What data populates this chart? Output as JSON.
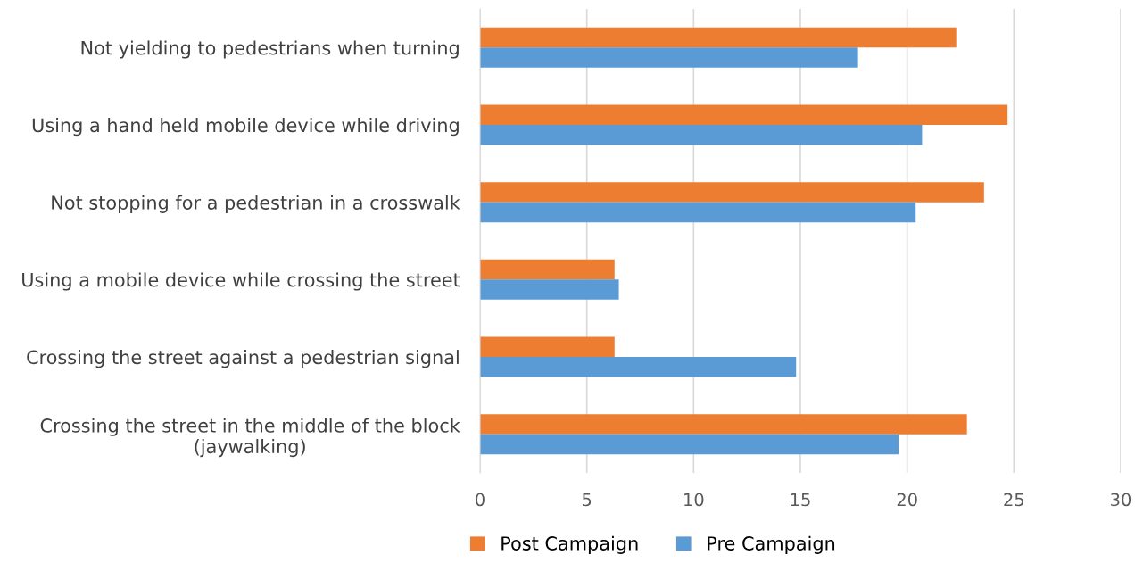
{
  "chart_data": {
    "type": "bar",
    "orientation": "horizontal",
    "categories": [
      "Not yielding to pedestrians when turning",
      "Using a hand held mobile device while driving",
      "Not stopping for a pedestrian in a crosswalk",
      "Using a mobile device while crossing the street",
      "Crossing the street against a pedestrian signal",
      "Crossing the street in the middle of the block\n(jaywalking)"
    ],
    "series": [
      {
        "name": "Post Campaign",
        "color": "#ed7d31",
        "values": [
          22.3,
          24.7,
          23.6,
          6.3,
          6.3,
          22.8
        ]
      },
      {
        "name": "Pre Campaign",
        "color": "#5b9bd5",
        "values": [
          17.7,
          20.7,
          20.4,
          6.5,
          14.8,
          19.6
        ]
      }
    ],
    "xlim": [
      0,
      30
    ],
    "xticks": [
      0,
      5,
      10,
      15,
      20,
      25,
      30
    ],
    "grid": "x",
    "legend": "bottom"
  }
}
